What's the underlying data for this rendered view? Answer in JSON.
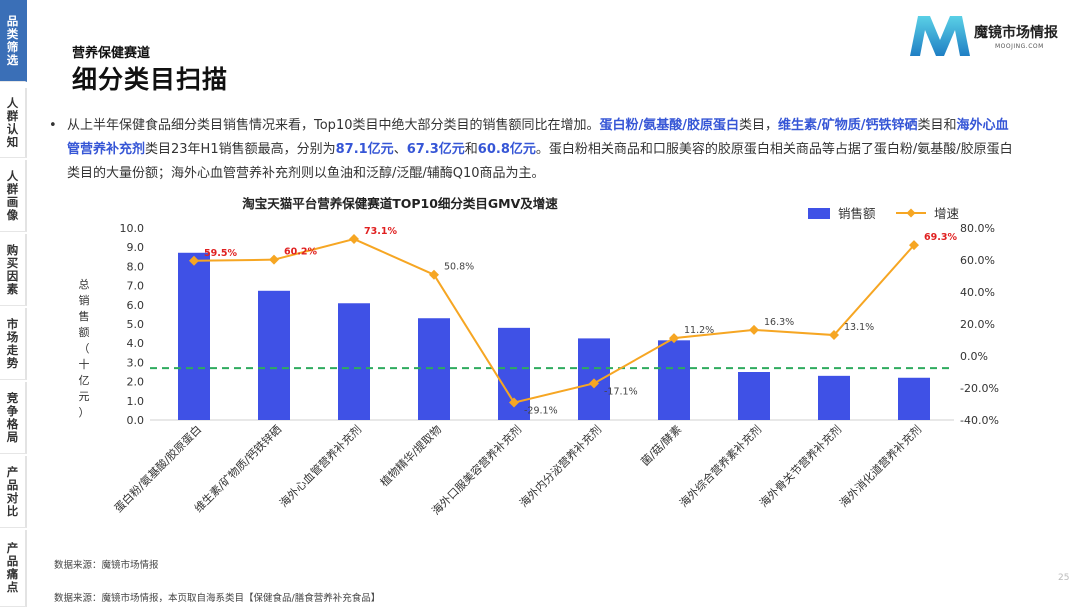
{
  "sidebar": {
    "items": [
      {
        "label": "品类筛选",
        "active": true
      },
      {
        "label": "人群认知",
        "active": false
      },
      {
        "label": "人群画像",
        "active": false
      },
      {
        "label": "购买因素",
        "active": false
      },
      {
        "label": "市场走势",
        "active": false
      },
      {
        "label": "竞争格局",
        "active": false
      },
      {
        "label": "产品对比",
        "active": false
      },
      {
        "label": "产品痛点",
        "active": false
      }
    ]
  },
  "header": {
    "subtitle": "营养保健赛道",
    "title": "细分类目扫描"
  },
  "brand": {
    "name": "魔镜市场情报",
    "domain": "MOOJING.COM"
  },
  "paragraph": {
    "bullet": "•",
    "p1": "从上半年保健食品细分类目销售情况来看，Top10类目中绝大部分类目的销售额同比在增加。",
    "h1": "蛋白粉/氨基酸/胶原蛋白",
    "p2": "类目，",
    "h2": "维生素/矿物质/钙铁锌硒",
    "p3": "类目和",
    "h3": "海外心血管营养补充剂",
    "p4": "类目23年H1销售额最高，分别为",
    "h4": "87.1亿元",
    "p5": "、",
    "h5": "67.3亿元",
    "p6": "和",
    "h6": "60.8亿元",
    "p7": "。蛋白粉相关商品和口服美容的胶原蛋白相关商品等占据了蛋白粉/氨基酸/胶原蛋白类目的大量份额；海外心血管营养补充剂则以鱼油和泛醇/泛醌/辅酶Q10商品为主。"
  },
  "chart_data": {
    "type": "bar",
    "title": "淘宝天猫平台营养保健赛道TOP10细分类目GMV及增速",
    "ylabel": "总销售额（十亿元）",
    "ylim": [
      0,
      10
    ],
    "y2lim": [
      -40,
      80
    ],
    "yticks": [
      "0.0",
      "1.0",
      "2.0",
      "3.0",
      "4.0",
      "5.0",
      "6.0",
      "7.0",
      "8.0",
      "9.0",
      "10.0"
    ],
    "y2ticks": [
      "-40.0%",
      "-20.0%",
      "0.0%",
      "20.0%",
      "40.0%",
      "60.0%",
      "80.0%"
    ],
    "categories": [
      "蛋白粉/氨基酸/胶原蛋白",
      "维生素/矿物质/钙铁锌硒",
      "海外心血管营养补充剂",
      "植物精华/提取物",
      "海外口服美容营养补充剂",
      "海外内分泌营养补充剂",
      "菌/菇/酵素",
      "海外综合营养素补充剂",
      "海外骨关节营养补充剂",
      "海外消化道营养补充剂"
    ],
    "series": [
      {
        "name": "销售额",
        "kind": "bar",
        "axis": "left",
        "color": "#3f51e6",
        "values": [
          8.71,
          6.73,
          6.08,
          5.3,
          4.8,
          4.25,
          4.15,
          2.5,
          2.3,
          2.2
        ]
      },
      {
        "name": "增速",
        "kind": "line",
        "axis": "right",
        "color": "#f6a623",
        "values": [
          59.5,
          60.2,
          73.1,
          50.8,
          -29.1,
          -17.1,
          11.2,
          16.3,
          13.1,
          69.3
        ],
        "labels": [
          "59.5%",
          "60.2%",
          "73.1%",
          "50.8%",
          "-29.1%",
          "-17.1%",
          "11.2%",
          "16.3%",
          "13.1%",
          "69.3%"
        ],
        "label_highlight": [
          true,
          true,
          true,
          false,
          false,
          false,
          false,
          false,
          false,
          true
        ]
      }
    ],
    "reference_line": {
      "axis": "left",
      "value": 2.7,
      "color": "#2eab5e",
      "style": "dashed"
    },
    "legend_position": "top-right"
  },
  "footnotes": {
    "source1": "数据来源：魔镜市场情报",
    "source2": "数据来源：魔镜市场情报，本页取自海系类目【保健食品/膳食营养补充食品】"
  },
  "page_number": "25"
}
